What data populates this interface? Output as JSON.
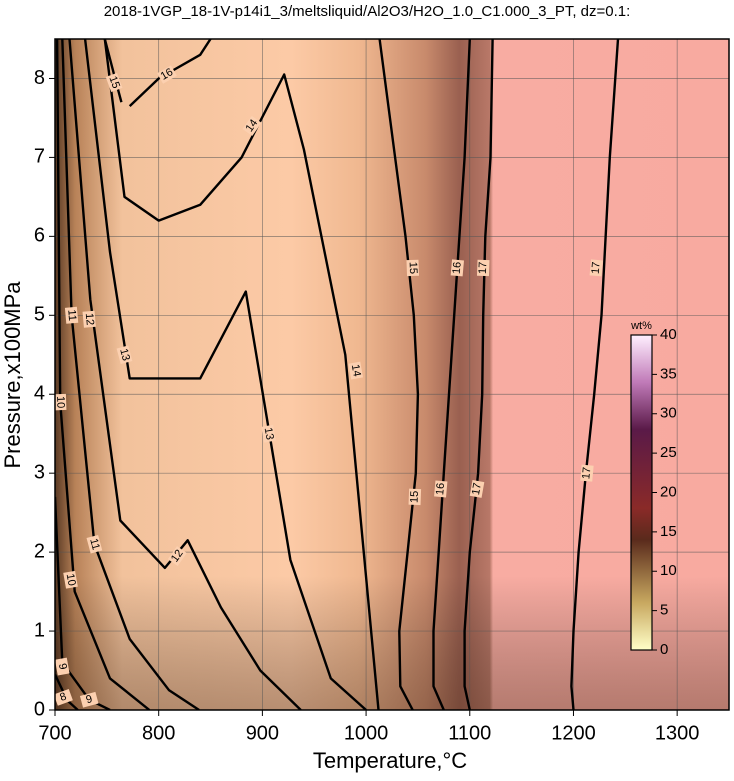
{
  "chart_data": {
    "type": "contour",
    "title": "2018-1VGP_18-1V-p14i1_3/meltsliquid/Al2O3/H2O_1.0_C1.000_3_PT, dz=0.1:",
    "x_label": "Temperature,°C",
    "y_label": "Pressure,x100MPa",
    "xlim": [
      700,
      1350
    ],
    "ylim": [
      0,
      8.5
    ],
    "xticks": [
      700,
      800,
      900,
      1000,
      1100,
      1200,
      1300
    ],
    "yticks": [
      0,
      1,
      2,
      3,
      4,
      5,
      6,
      7,
      8
    ],
    "grid": true,
    "contours": [
      {
        "level": 17,
        "x": [
          1200,
          1198,
          1200,
          1205,
          1212,
          1220,
          1227,
          1235,
          1243
        ],
        "y": [
          0,
          0.3,
          1,
          2,
          3,
          4,
          5,
          7,
          8.5
        ]
      },
      {
        "level": 17,
        "x": [
          1100,
          1095,
          1095,
          1100,
          1108,
          1112,
          1113,
          1115,
          1120,
          1122
        ],
        "y": [
          0,
          0.3,
          1,
          2,
          3,
          4,
          5,
          6,
          7,
          8.5
        ]
      },
      {
        "level": 16,
        "x": [
          1075,
          1065,
          1065,
          1070,
          1075,
          1080,
          1085,
          1090,
          1095,
          1100
        ],
        "y": [
          0,
          0.3,
          1,
          2,
          3,
          4,
          5,
          6,
          7,
          8.5
        ]
      },
      {
        "level": 15,
        "x": [
          1045,
          1033,
          1032,
          1040,
          1048,
          1050,
          1046,
          1038,
          1028,
          1013
        ],
        "y": [
          0,
          0.3,
          1,
          2,
          3,
          4,
          5,
          6,
          7,
          8.5
        ]
      },
      {
        "level": 14,
        "x": [
          748,
          767,
          800,
          840,
          880,
          921,
          940,
          980,
          1012
        ],
        "y": [
          8.5,
          6.5,
          6.2,
          6.4,
          7.0,
          8.05,
          7.1,
          4.5,
          0
        ]
      },
      {
        "level": 15,
        "x": [
          748,
          758,
          764
        ],
        "y": [
          8.5,
          8.0,
          7.7
        ]
      },
      {
        "level": 16,
        "x": [
          772,
          800,
          840,
          850
        ],
        "y": [
          7.65,
          8.0,
          8.3,
          8.5
        ]
      },
      {
        "level": 13,
        "x": [
          729,
          753,
          772,
          840,
          884,
          903,
          927,
          966,
          1000
        ],
        "y": [
          8.5,
          5.8,
          4.2,
          4.2,
          5.3,
          3.8,
          1.9,
          0.4,
          0
        ]
      },
      {
        "level": 12,
        "x": [
          714,
          734,
          763,
          806,
          828,
          860,
          898,
          937
        ],
        "y": [
          8.5,
          5.2,
          2.4,
          1.8,
          2.15,
          1.3,
          0.5,
          0
        ]
      },
      {
        "level": 11,
        "x": [
          707,
          716,
          738,
          772,
          810,
          839
        ],
        "y": [
          8.5,
          5.0,
          2.1,
          0.9,
          0.25,
          0
        ]
      },
      {
        "level": 10,
        "x": [
          702,
          705,
          719,
          753,
          791
        ],
        "y": [
          8.5,
          3.9,
          1.5,
          0.4,
          0
        ]
      },
      {
        "level": 9,
        "x": [
          700,
          707,
          733,
          753
        ],
        "y": [
          2.7,
          0.6,
          0.13,
          0
        ]
      },
      {
        "level": 8,
        "x": [
          700,
          712,
          722
        ],
        "y": [
          0.45,
          0.12,
          0
        ]
      }
    ],
    "colorbar": {
      "label": "wt%",
      "lim": [
        0,
        40
      ],
      "ticks": [
        0,
        5,
        10,
        15,
        20,
        25,
        30,
        35,
        40
      ]
    }
  }
}
